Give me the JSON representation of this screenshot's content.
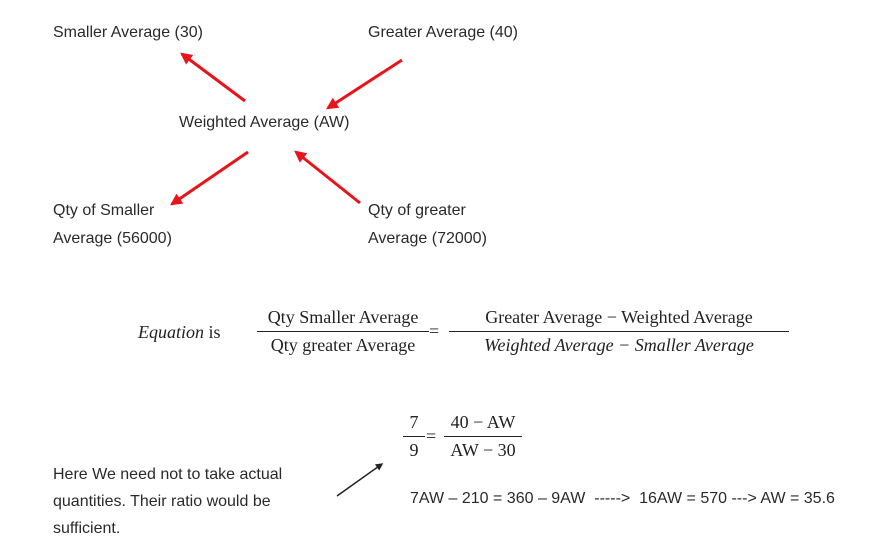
{
  "labels": {
    "smaller_average": "Smaller Average (30)",
    "greater_average": "Greater Average (40)",
    "weighted_average": "Weighted Average (AW)",
    "qty_smaller_line1": "Qty of Smaller",
    "qty_smaller_line2": "Average (56000)",
    "qty_greater_line1": "Qty of greater",
    "qty_greater_line2": "Average (72000)"
  },
  "equation": {
    "label_word": "Equation",
    "label_is": "is",
    "left_numerator": "Qty Smaller Average",
    "left_denominator": "Qty greater Average",
    "equals": "=",
    "right_numerator": "Greater Average − Weighted Average",
    "right_denominator": "Weighted Average − Smaller Average"
  },
  "ratio_equation": {
    "left_numerator": "7",
    "left_denominator": "9",
    "equals": "=",
    "right_numerator": "40 − AW",
    "right_denominator": "AW − 30"
  },
  "solution": "7AW – 210 = 360 – 9AW  ----->  16AW = 570 ---> AW = 35.6",
  "note": {
    "line1": "Here We need not to take actual",
    "line2": "quantities. Their ratio would be",
    "line3": "sufficient."
  },
  "colors": {
    "arrow": "#e8141b",
    "text": "#2a2a2a"
  }
}
